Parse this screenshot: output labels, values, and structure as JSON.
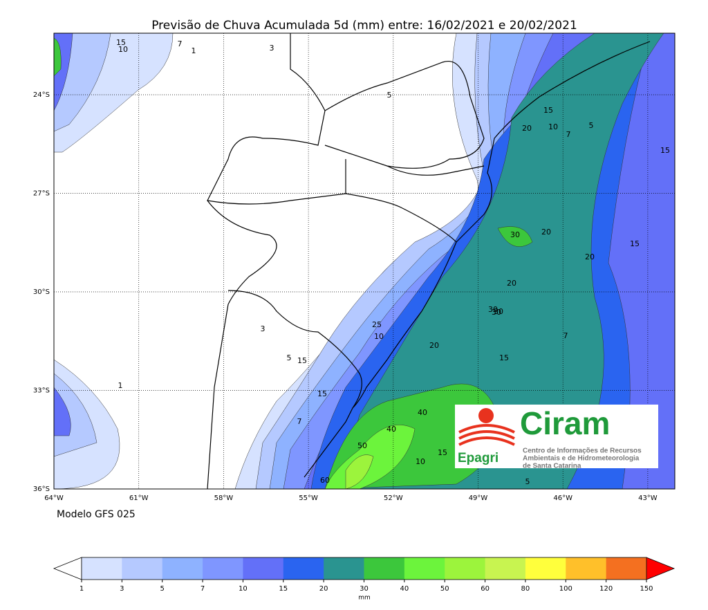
{
  "title": "Previsão de Chuva Acumulada 5d (mm) entre: 16/02/2021 e 20/02/2021",
  "map": {
    "lon_ticks": [
      {
        "value": -64,
        "label": "64°W"
      },
      {
        "value": -61,
        "label": "61°W"
      },
      {
        "value": -58,
        "label": "58°W"
      },
      {
        "value": -55,
        "label": "55°W"
      },
      {
        "value": -52,
        "label": "52°W"
      },
      {
        "value": -49,
        "label": "49°W"
      },
      {
        "value": -46,
        "label": "46°W"
      },
      {
        "value": -43,
        "label": "43°W"
      }
    ],
    "lat_ticks": [
      {
        "value": -24,
        "label": "24°S"
      },
      {
        "value": -27,
        "label": "27°S"
      },
      {
        "value": -30,
        "label": "30°S"
      },
      {
        "value": -33,
        "label": "33°S"
      },
      {
        "value": -36,
        "label": "36°S"
      }
    ],
    "contour_labels": [
      15,
      10,
      7,
      3,
      1,
      5,
      15,
      20,
      10,
      5,
      7,
      15,
      30,
      20,
      15,
      20,
      30,
      7,
      15,
      20,
      25,
      15,
      10,
      3,
      5,
      15,
      40,
      50,
      40,
      60,
      30,
      20,
      5,
      10,
      15,
      1,
      7,
      30
    ]
  },
  "footer": "Modelo GFS 025",
  "colorbar": {
    "ticks": [
      1,
      3,
      5,
      7,
      10,
      15,
      20,
      30,
      40,
      50,
      60,
      80,
      100,
      120,
      150
    ],
    "colors": [
      "#d6e2ff",
      "#b5c9ff",
      "#8eb2ff",
      "#7f96ff",
      "#6370f8",
      "#2a64f0",
      "#2a9490",
      "#3cc73c",
      "#6cf43c",
      "#9cf43c",
      "#c8f450",
      "#ffff3c",
      "#ffc02a",
      "#f47020"
    ],
    "under_color": "#ffffff",
    "over_color": "#ff0000",
    "unit": "mm"
  },
  "logo": {
    "brand": "Ciram",
    "org": "Epagri",
    "line1": "Centro de Informações de Recursos",
    "line2": "Ambientais e de Hidrometeorologia",
    "line3": "de Santa Catarina"
  }
}
